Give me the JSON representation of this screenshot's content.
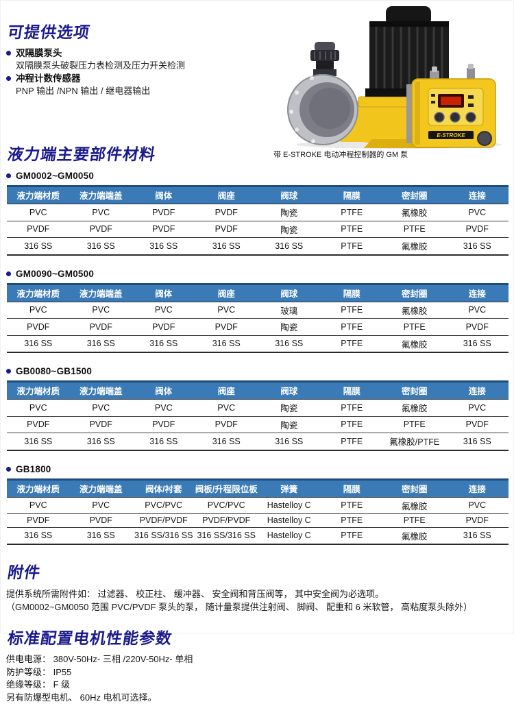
{
  "options_section": {
    "title": "可提供选项",
    "items": [
      {
        "label": "双隔膜泵头",
        "detail": "双隔膜泵头破裂压力表检测及压力开关检测"
      },
      {
        "label": "冲程计数传感器",
        "detail": "PNP 输出 /NPN 输出 / 继电器输出"
      }
    ]
  },
  "figure": {
    "caption": "带 E-STROKE 电动冲程控制器的 GM 泵",
    "panel_label": "E-STROKE"
  },
  "materials_section": {
    "title": "液力端主要部件材料",
    "tables": [
      {
        "model": "GM0002~GM0050",
        "headers": [
          "液力端材质",
          "液力端端盖",
          "阀体",
          "阀座",
          "阀球",
          "隔膜",
          "密封圈",
          "连接"
        ],
        "rows": [
          [
            "PVC",
            "PVC",
            "PVDF",
            "PVDF",
            "陶瓷",
            "PTFE",
            "氟橡胶",
            "PVC"
          ],
          [
            "PVDF",
            "PVDF",
            "PVDF",
            "PVDF",
            "陶瓷",
            "PTFE",
            "PTFE",
            "PVDF"
          ],
          [
            "316 SS",
            "316 SS",
            "316 SS",
            "316 SS",
            "316 SS",
            "PTFE",
            "氟橡胶",
            "316 SS"
          ]
        ]
      },
      {
        "model": "GM0090~GM0500",
        "headers": [
          "液力端材质",
          "液力端端盖",
          "阀体",
          "阀座",
          "阀球",
          "隔膜",
          "密封圈",
          "连接"
        ],
        "rows": [
          [
            "PVC",
            "PVC",
            "PVC",
            "PVC",
            "玻璃",
            "PTFE",
            "氟橡胶",
            "PVC"
          ],
          [
            "PVDF",
            "PVDF",
            "PVDF",
            "PVDF",
            "陶瓷",
            "PTFE",
            "PTFE",
            "PVDF"
          ],
          [
            "316 SS",
            "316 SS",
            "316 SS",
            "316 SS",
            "316 SS",
            "PTFE",
            "氟橡胶",
            "316 SS"
          ]
        ]
      },
      {
        "model": "GB0080~GB1500",
        "headers": [
          "液力端材质",
          "液力端端盖",
          "阀体",
          "阀座",
          "阀球",
          "隔膜",
          "密封圈",
          "连接"
        ],
        "rows": [
          [
            "PVC",
            "PVC",
            "PVC",
            "PVC",
            "陶瓷",
            "PTFE",
            "氟橡胶",
            "PVC"
          ],
          [
            "PVDF",
            "PVDF",
            "PVDF",
            "PVDF",
            "陶瓷",
            "PTFE",
            "PTFE",
            "PVDF"
          ],
          [
            "316 SS",
            "316 SS",
            "316 SS",
            "316 SS",
            "316 SS",
            "PTFE",
            "氟橡胶/PTFE",
            "316 SS"
          ]
        ]
      },
      {
        "model": "GB1800",
        "headers": [
          "液力端材质",
          "液力端端盖",
          "阀体/衬套",
          "阀板/升程限位板",
          "弹簧",
          "隔膜",
          "密封圈",
          "连接"
        ],
        "rows": [
          [
            "PVC",
            "PVC",
            "PVC/PVC",
            "PVC/PVC",
            "Hastelloy C",
            "PTFE",
            "氟橡胶",
            "PVC"
          ],
          [
            "PVDF",
            "PVDF",
            "PVDF/PVDF",
            "PVDF/PVDF",
            "Hastelloy C",
            "PTFE",
            "PTFE",
            "PVDF"
          ],
          [
            "316 SS",
            "316 SS",
            "316 SS/316 SS",
            "316 SS/316 SS",
            "Hastelloy C",
            "PTFE",
            "氟橡胶",
            "316 SS"
          ]
        ]
      }
    ]
  },
  "accessories_section": {
    "title": "附件",
    "lines": [
      "提供系统所需附件如： 过滤器、 校正柱、 缓冲器、 安全阀和背压阀等， 其中安全阀为必选项。",
      "（GM0002~GM0050 范围 PVC/PVDF 泵头的泵， 随计量泵提供注射阀、 脚阀、 配重和 6 米软管， 高粘度泵头除外）"
    ]
  },
  "motor_section": {
    "title": "标准配置电机性能参数",
    "lines": [
      "供电电源： 380V-50Hz- 三相 /220V-50Hz- 单相",
      "防护等级： IP55",
      "绝缘等级： F 级",
      "另有防爆型电机、 60Hz 电机可选择。"
    ]
  },
  "colors": {
    "accent_navy": "#1a1a8c",
    "table_header_blue": "#3a7ab6",
    "pump_yellow": "#f2c51c",
    "display_red": "#e02800"
  }
}
